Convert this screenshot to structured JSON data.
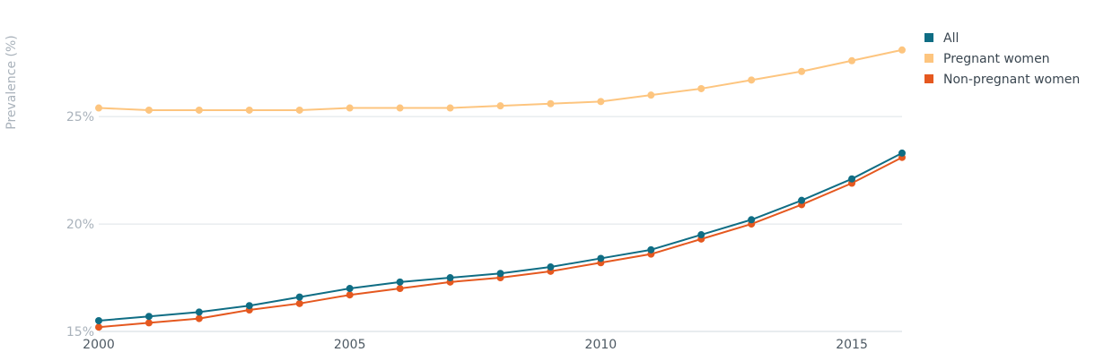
{
  "chart_data": {
    "type": "line",
    "ylabel": "Prevalence (%)",
    "xlabel": "",
    "x": [
      2000,
      2001,
      2002,
      2003,
      2004,
      2005,
      2006,
      2007,
      2008,
      2009,
      2010,
      2011,
      2012,
      2013,
      2014,
      2015,
      2016
    ],
    "x_ticks": [
      {
        "value": 2000,
        "label": "2000"
      },
      {
        "value": 2005,
        "label": "2005"
      },
      {
        "value": 2010,
        "label": "2010"
      },
      {
        "value": 2015,
        "label": "2015"
      }
    ],
    "y_ticks": [
      {
        "value": 15,
        "label": "15%"
      },
      {
        "value": 20,
        "label": "20%"
      },
      {
        "value": 25,
        "label": "25%"
      }
    ],
    "xlim": [
      2000,
      2016
    ],
    "ylim": [
      15,
      29.8
    ],
    "grid": true,
    "legend_position": "top-right",
    "series": [
      {
        "name": "All",
        "color": "#0f6d84",
        "values": [
          15.5,
          15.7,
          15.9,
          16.2,
          16.6,
          17.0,
          17.3,
          17.5,
          17.7,
          18.0,
          18.4,
          18.8,
          19.5,
          20.2,
          21.1,
          22.1,
          23.3
        ]
      },
      {
        "name": "Pregnant women",
        "color": "#fdc57f",
        "values": [
          25.4,
          25.3,
          25.3,
          25.3,
          25.3,
          25.4,
          25.4,
          25.4,
          25.5,
          25.6,
          25.7,
          26.0,
          26.3,
          26.7,
          27.1,
          27.6,
          28.1
        ]
      },
      {
        "name": "Non-pregnant women",
        "color": "#e5581f",
        "values": [
          15.2,
          15.4,
          15.6,
          16.0,
          16.3,
          16.7,
          17.0,
          17.3,
          17.5,
          17.8,
          18.2,
          18.6,
          19.3,
          20.0,
          20.9,
          21.9,
          23.1
        ]
      }
    ]
  }
}
